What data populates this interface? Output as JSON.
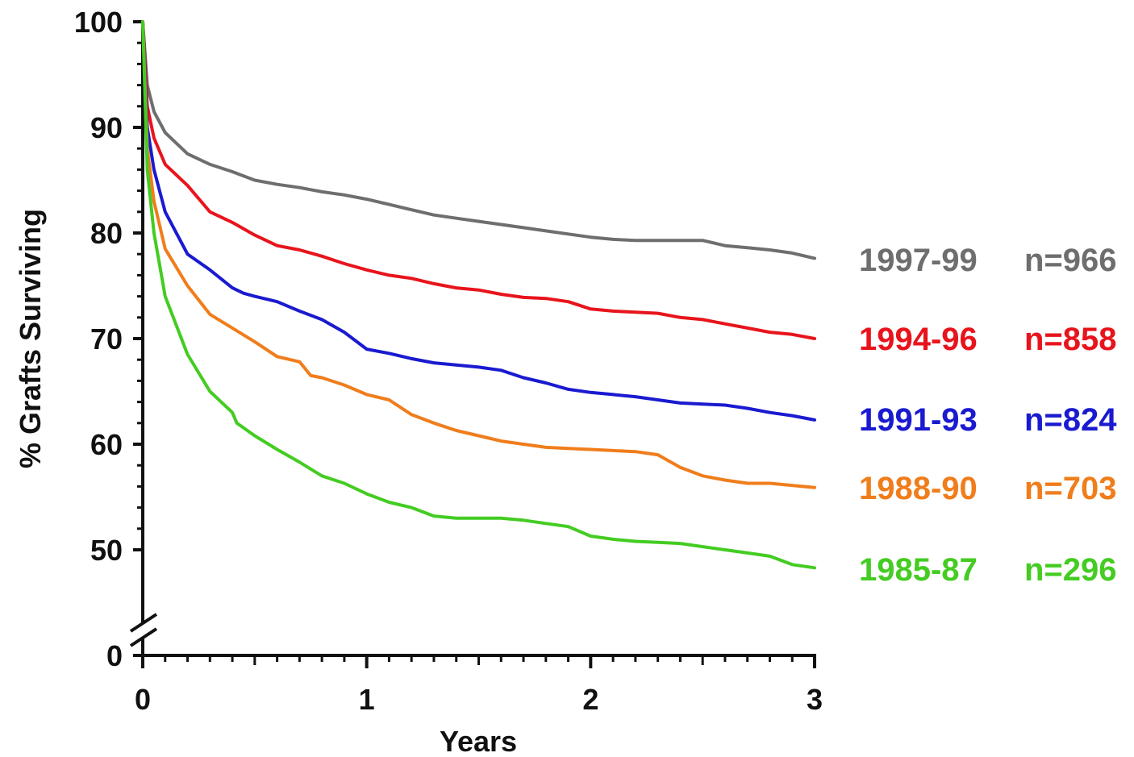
{
  "chart_data": {
    "type": "line",
    "ylabel": "% Grafts Surviving",
    "xlabel": "Years",
    "xlim": [
      0,
      3
    ],
    "ylim": [
      0,
      100
    ],
    "axis_break": "between 0 and 50 on y-axis",
    "x_ticks": [
      "0",
      "1",
      "2",
      "3"
    ],
    "y_ticks": [
      "0",
      "50",
      "60",
      "70",
      "80",
      "90",
      "100"
    ],
    "grid": false,
    "legend_placement": "right, at line ends",
    "series": [
      {
        "name": "1997-99",
        "n_label": "n=966",
        "color": "#6e6e6e",
        "points": [
          [
            0,
            100
          ],
          [
            0.02,
            94
          ],
          [
            0.05,
            91.5
          ],
          [
            0.1,
            89.5
          ],
          [
            0.2,
            87.5
          ],
          [
            0.3,
            86.5
          ],
          [
            0.4,
            85.8
          ],
          [
            0.5,
            85
          ],
          [
            0.6,
            84.6
          ],
          [
            0.7,
            84.3
          ],
          [
            0.8,
            83.9
          ],
          [
            0.9,
            83.6
          ],
          [
            1.0,
            83.2
          ],
          [
            1.1,
            82.7
          ],
          [
            1.2,
            82.2
          ],
          [
            1.3,
            81.7
          ],
          [
            1.4,
            81.4
          ],
          [
            1.5,
            81.1
          ],
          [
            1.6,
            80.8
          ],
          [
            1.7,
            80.5
          ],
          [
            1.8,
            80.2
          ],
          [
            1.9,
            79.9
          ],
          [
            2.0,
            79.6
          ],
          [
            2.1,
            79.4
          ],
          [
            2.2,
            79.3
          ],
          [
            2.3,
            79.3
          ],
          [
            2.4,
            79.3
          ],
          [
            2.5,
            79.3
          ],
          [
            2.6,
            78.8
          ],
          [
            2.7,
            78.6
          ],
          [
            2.8,
            78.4
          ],
          [
            2.9,
            78.1
          ],
          [
            3.0,
            77.6
          ]
        ]
      },
      {
        "name": "1994-96",
        "n_label": "n=858",
        "color": "#e8141c",
        "points": [
          [
            0,
            100
          ],
          [
            0.02,
            92
          ],
          [
            0.05,
            89
          ],
          [
            0.1,
            86.5
          ],
          [
            0.2,
            84.5
          ],
          [
            0.3,
            82
          ],
          [
            0.4,
            81
          ],
          [
            0.5,
            79.8
          ],
          [
            0.6,
            78.8
          ],
          [
            0.7,
            78.4
          ],
          [
            0.8,
            77.8
          ],
          [
            0.9,
            77.1
          ],
          [
            1.0,
            76.5
          ],
          [
            1.1,
            76
          ],
          [
            1.2,
            75.7
          ],
          [
            1.3,
            75.2
          ],
          [
            1.4,
            74.8
          ],
          [
            1.5,
            74.6
          ],
          [
            1.6,
            74.2
          ],
          [
            1.7,
            73.9
          ],
          [
            1.8,
            73.8
          ],
          [
            1.9,
            73.5
          ],
          [
            2.0,
            72.8
          ],
          [
            2.1,
            72.6
          ],
          [
            2.2,
            72.5
          ],
          [
            2.3,
            72.4
          ],
          [
            2.4,
            72
          ],
          [
            2.5,
            71.8
          ],
          [
            2.6,
            71.4
          ],
          [
            2.7,
            71
          ],
          [
            2.8,
            70.6
          ],
          [
            2.9,
            70.4
          ],
          [
            3.0,
            70
          ]
        ]
      },
      {
        "name": "1991-93",
        "n_label": "n=824",
        "color": "#1a1ad0",
        "points": [
          [
            0,
            100
          ],
          [
            0.02,
            90
          ],
          [
            0.05,
            86
          ],
          [
            0.1,
            82
          ],
          [
            0.2,
            78
          ],
          [
            0.3,
            76.5
          ],
          [
            0.4,
            74.8
          ],
          [
            0.45,
            74.3
          ],
          [
            0.5,
            74
          ],
          [
            0.6,
            73.5
          ],
          [
            0.7,
            72.6
          ],
          [
            0.8,
            71.8
          ],
          [
            0.9,
            70.6
          ],
          [
            1.0,
            69
          ],
          [
            1.1,
            68.6
          ],
          [
            1.2,
            68.1
          ],
          [
            1.3,
            67.7
          ],
          [
            1.4,
            67.5
          ],
          [
            1.5,
            67.3
          ],
          [
            1.6,
            67
          ],
          [
            1.7,
            66.3
          ],
          [
            1.8,
            65.8
          ],
          [
            1.9,
            65.2
          ],
          [
            2.0,
            64.9
          ],
          [
            2.1,
            64.7
          ],
          [
            2.2,
            64.5
          ],
          [
            2.3,
            64.2
          ],
          [
            2.4,
            63.9
          ],
          [
            2.5,
            63.8
          ],
          [
            2.6,
            63.7
          ],
          [
            2.7,
            63.4
          ],
          [
            2.8,
            63
          ],
          [
            2.9,
            62.7
          ],
          [
            3.0,
            62.3
          ]
        ]
      },
      {
        "name": "1988-90",
        "n_label": "n=703",
        "color": "#f07d1c",
        "points": [
          [
            0,
            100
          ],
          [
            0.02,
            88
          ],
          [
            0.05,
            83
          ],
          [
            0.1,
            78.5
          ],
          [
            0.2,
            75
          ],
          [
            0.3,
            72.3
          ],
          [
            0.4,
            71
          ],
          [
            0.5,
            69.7
          ],
          [
            0.6,
            68.3
          ],
          [
            0.7,
            67.8
          ],
          [
            0.75,
            66.5
          ],
          [
            0.8,
            66.3
          ],
          [
            0.9,
            65.6
          ],
          [
            1.0,
            64.7
          ],
          [
            1.1,
            64.2
          ],
          [
            1.2,
            62.8
          ],
          [
            1.3,
            62
          ],
          [
            1.4,
            61.3
          ],
          [
            1.5,
            60.8
          ],
          [
            1.6,
            60.3
          ],
          [
            1.7,
            60
          ],
          [
            1.8,
            59.7
          ],
          [
            1.9,
            59.6
          ],
          [
            2.0,
            59.5
          ],
          [
            2.1,
            59.4
          ],
          [
            2.2,
            59.3
          ],
          [
            2.3,
            59
          ],
          [
            2.4,
            57.8
          ],
          [
            2.5,
            57
          ],
          [
            2.6,
            56.6
          ],
          [
            2.7,
            56.3
          ],
          [
            2.8,
            56.3
          ],
          [
            2.9,
            56.1
          ],
          [
            3.0,
            55.9
          ]
        ]
      },
      {
        "name": "1985-87",
        "n_label": "n=296",
        "color": "#44cc22",
        "points": [
          [
            0,
            100
          ],
          [
            0.02,
            86
          ],
          [
            0.05,
            80
          ],
          [
            0.1,
            74
          ],
          [
            0.2,
            68.5
          ],
          [
            0.3,
            65
          ],
          [
            0.4,
            63
          ],
          [
            0.42,
            62
          ],
          [
            0.5,
            60.8
          ],
          [
            0.6,
            59.5
          ],
          [
            0.7,
            58.3
          ],
          [
            0.8,
            57
          ],
          [
            0.9,
            56.3
          ],
          [
            1.0,
            55.3
          ],
          [
            1.1,
            54.5
          ],
          [
            1.2,
            54
          ],
          [
            1.3,
            53.2
          ],
          [
            1.4,
            53
          ],
          [
            1.5,
            53
          ],
          [
            1.6,
            53
          ],
          [
            1.7,
            52.8
          ],
          [
            1.8,
            52.5
          ],
          [
            1.9,
            52.2
          ],
          [
            2.0,
            51.3
          ],
          [
            2.1,
            51
          ],
          [
            2.2,
            50.8
          ],
          [
            2.3,
            50.7
          ],
          [
            2.4,
            50.6
          ],
          [
            2.5,
            50.3
          ],
          [
            2.6,
            50
          ],
          [
            2.7,
            49.7
          ],
          [
            2.8,
            49.4
          ],
          [
            2.9,
            48.6
          ],
          [
            3.0,
            48.3
          ]
        ]
      }
    ]
  }
}
